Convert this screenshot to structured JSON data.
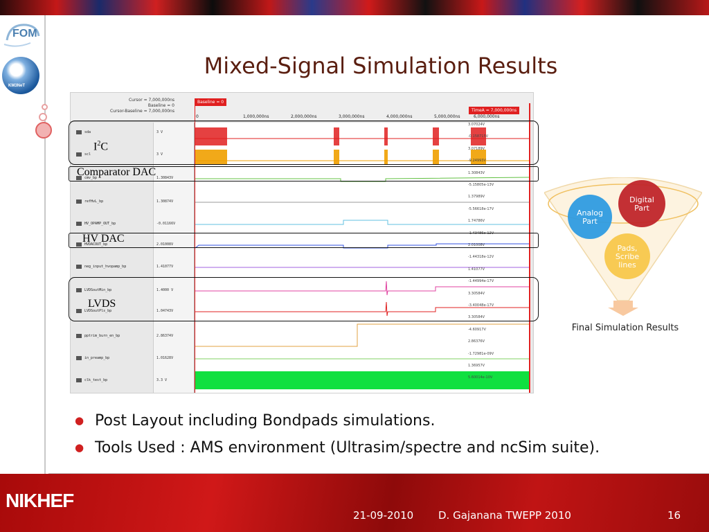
{
  "slide": {
    "title": "Mixed-Signal Simulation Results",
    "logos": {
      "fom": "FOM",
      "km3net": "KM3NeT",
      "nikhef": "NIKHEF"
    }
  },
  "simulation": {
    "cursor_info": [
      "Cursor = 7,000,000ns",
      "Baseline = 0",
      "Cursor-Baseline = 7,000,000ns"
    ],
    "baseline_tag": "Baseline = 0",
    "timea_tag": "TimeA = 7,000,000ns",
    "ticks": [
      "0",
      "1,000,000ns",
      "2,000,000ns",
      "3,000,000ns",
      "4,000,000ns",
      "5,000,000ns",
      "6,000,000ns"
    ],
    "signals": [
      {
        "name": "sda",
        "value": "3 V",
        "color": "#e02020"
      },
      {
        "name": "scl",
        "value": "3 V",
        "color": "#f0a000"
      },
      {
        "name": "cmv_bp",
        "value": "1.30843V",
        "color": "#60c040"
      },
      {
        "name": "refHvL_bp",
        "value": "1.30874V",
        "color": "#9a9a9a"
      },
      {
        "name": "HV_OPAMP_OUT_bp",
        "value": "-0.01166V",
        "color": "#60c0e0"
      },
      {
        "name": "HVDACOUT_bp",
        "value": "2.01008V",
        "color": "#3050e0"
      },
      {
        "name": "neg_input_hvopamp_bp",
        "value": "1.41077V",
        "color": "#a060e0"
      },
      {
        "name": "LVDSoutMin_bp",
        "value": "1.4000 V",
        "color": "#e040a0"
      },
      {
        "name": "LVDSoutPls_bp",
        "value": "1.04743V",
        "color": "#e02020"
      },
      {
        "name": "pptrim_burn_en_bp",
        "value": "2.86374V",
        "color": "#e0a040"
      },
      {
        "name": "in_preamp_bp",
        "value": "1.01628V",
        "color": "#80d060"
      },
      {
        "name": "clk_test_bp",
        "value": "3.3 V",
        "color": "#10e040"
      }
    ],
    "end_values": [
      "3.07024V",
      "-0.158715V",
      "3.07189V",
      "-9.24993V",
      "1.30843V",
      "-5.15805e-13V",
      "1.37989V",
      "-5.56618e-17V",
      "1.74786V",
      "-1.43486e-12V",
      "2.01008V",
      "-1.44318e-12V",
      "1.41077V",
      "-1.44994e-17V",
      "3.30584V",
      "-3.40048e-17V",
      "3.30584V",
      "-4.60917V",
      "2.86376V",
      "-1.72981e-09V",
      "1.36957V",
      "5.60014e-10V"
    ]
  },
  "groups": [
    {
      "label_main": "I",
      "label_sup": "2",
      "label_tail": "C"
    },
    {
      "label": "Comparator DAC"
    },
    {
      "label": "HV DAC"
    },
    {
      "label": "LVDS"
    }
  ],
  "venn": {
    "circles": [
      {
        "label": "Digital\nPart",
        "color": "#c0252a",
        "text_color": "#ffffff"
      },
      {
        "label": "Analog\nPart",
        "color": "#2f9be0",
        "text_color": "#ffffff"
      },
      {
        "label": "Pads,\nScribe\nlines",
        "color": "#f7c23a",
        "text_color": "#ffffff"
      }
    ],
    "caption": "Final Simulation Results"
  },
  "bullets": [
    "Post Layout including Bondpads simulations.",
    "Tools Used : AMS environment (Ultrasim/spectre and ncSim suite)."
  ],
  "footer": {
    "date": "21-09-2010",
    "author": "D. Gajanana TWEPP 2010",
    "page": "16"
  }
}
